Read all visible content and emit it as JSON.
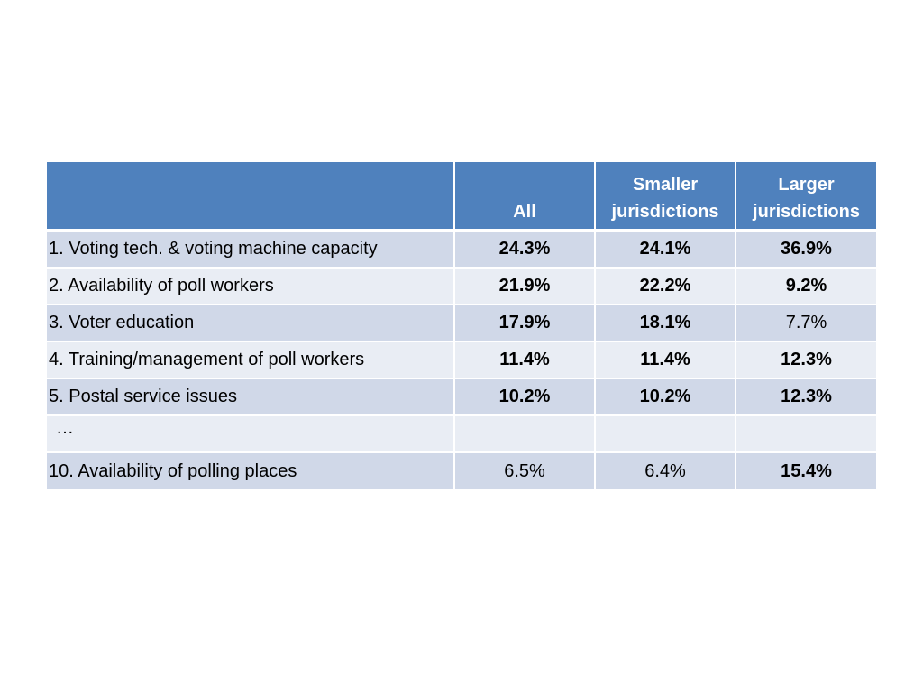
{
  "chart_data": {
    "type": "table",
    "columns": [
      "",
      "All",
      "Smaller jurisdictions",
      "Larger jurisdictions"
    ],
    "column_headers": {
      "all": "All",
      "smaller_line1": "Smaller",
      "smaller_line2": "jurisdictions",
      "larger_line1": "Larger",
      "larger_line2": "jurisdictions"
    },
    "rows": [
      {
        "label": "1. Voting tech. & voting machine capacity",
        "values": [
          "24.3%",
          "24.1%",
          "36.9%"
        ],
        "bold": [
          true,
          true,
          true
        ]
      },
      {
        "label": "2. Availability of poll workers",
        "values": [
          "21.9%",
          "22.2%",
          "9.2%"
        ],
        "bold": [
          true,
          true,
          true
        ]
      },
      {
        "label": "3. Voter education",
        "values": [
          "17.9%",
          "18.1%",
          "7.7%"
        ],
        "bold": [
          true,
          true,
          false
        ]
      },
      {
        "label": "4. Training/management of poll workers",
        "values": [
          "11.4%",
          "11.4%",
          "12.3%"
        ],
        "bold": [
          true,
          true,
          true
        ]
      },
      {
        "label": "5. Postal service issues",
        "values": [
          "10.2%",
          "10.2%",
          "12.3%"
        ],
        "bold": [
          true,
          true,
          true
        ]
      },
      {
        "label": "…",
        "values": [
          "",
          "",
          ""
        ],
        "bold": [
          false,
          false,
          false
        ]
      },
      {
        "label": "10. Availability of polling places",
        "values": [
          "6.5%",
          "6.4%",
          "15.4%"
        ],
        "bold": [
          false,
          false,
          true
        ]
      }
    ],
    "header_color": "#4f81bd",
    "row_color_odd": "#d0d8e8",
    "row_color_even": "#e9edf4"
  }
}
